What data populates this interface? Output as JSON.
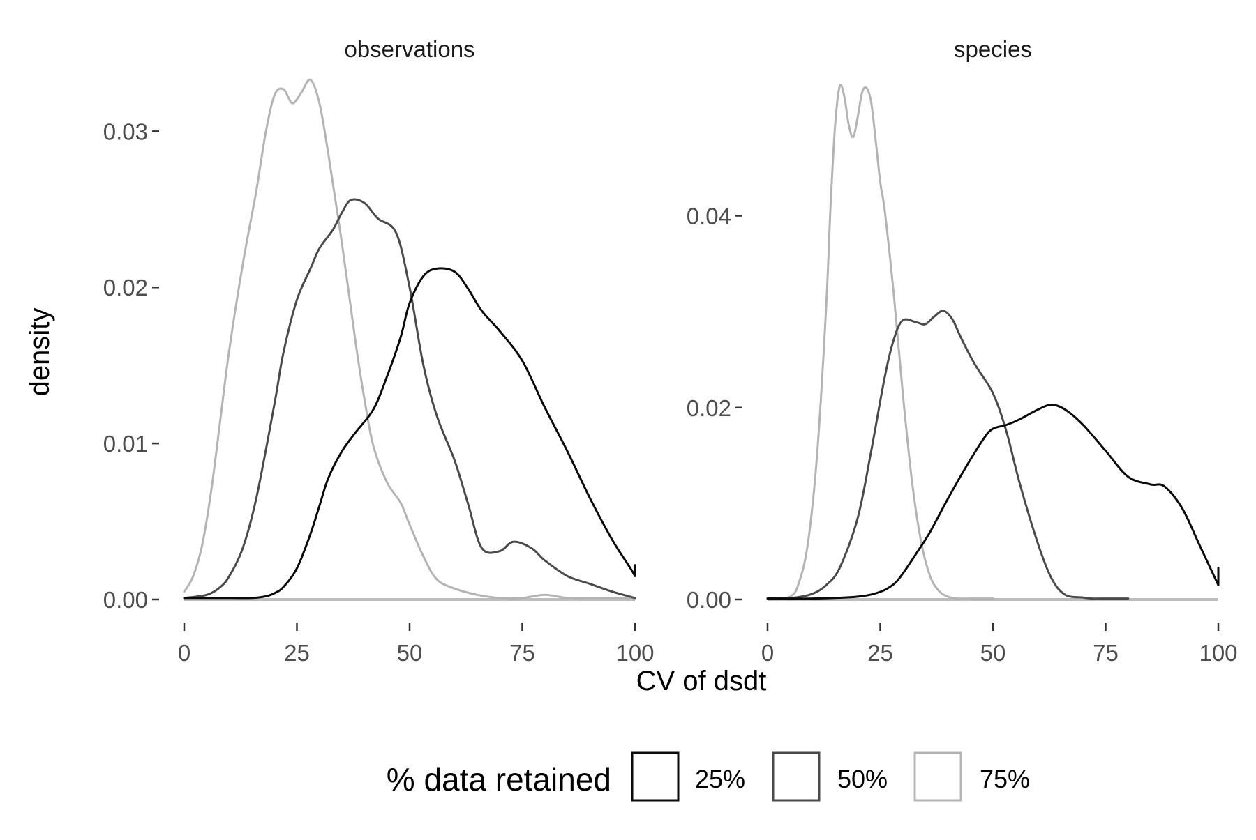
{
  "chart_data": {
    "type": "line",
    "kind": "density",
    "xlabel": "CV of dsdt",
    "ylabel": "density",
    "legend": {
      "title": "% data retained",
      "position": "bottom",
      "entries": [
        {
          "label": "25%",
          "color": "#0a0a0a"
        },
        {
          "label": "50%",
          "color": "#4a4a4a"
        },
        {
          "label": "75%",
          "color": "#b4b4b4"
        }
      ]
    },
    "panels": [
      {
        "strip": "observations",
        "xlim": [
          0,
          100
        ],
        "ylim": [
          0,
          0.0335
        ],
        "xticks": [
          0,
          25,
          50,
          75,
          100
        ],
        "xtick_labels": [
          "0",
          "25",
          "50",
          "75",
          "100"
        ],
        "yticks": [
          0,
          0.01,
          0.02,
          0.03
        ],
        "ytick_labels": [
          "0.00",
          "0.01",
          "0.02",
          "0.03"
        ],
        "series": [
          {
            "name": "25%",
            "x": [
              0,
              10,
              15,
              18,
              20,
              22,
              25,
              28,
              30,
              32,
              35,
              38,
              42,
              45,
              48,
              50,
              53,
              56,
              60,
              63,
              66,
              70,
              75,
              80,
              85,
              90,
              95,
              99,
              100,
              100
            ],
            "y": [
              0.0001,
              0.0001,
              0.0001,
              0.0002,
              0.0004,
              0.0008,
              0.002,
              0.0042,
              0.006,
              0.0078,
              0.0095,
              0.0107,
              0.0122,
              0.0143,
              0.0168,
              0.019,
              0.0207,
              0.0212,
              0.021,
              0.0199,
              0.0185,
              0.0172,
              0.0153,
              0.0123,
              0.0095,
              0.0065,
              0.0038,
              0.002,
              0.0015,
              0.0022
            ]
          },
          {
            "name": "50%",
            "x": [
              0,
              5,
              8,
              10,
              13,
              16,
              20,
              22,
              25,
              28,
              30,
              33,
              35,
              37,
              40,
              43,
              47,
              50,
              53,
              56,
              60,
              63,
              66,
              70,
              73,
              77,
              80,
              85,
              90,
              95,
              100
            ],
            "y": [
              0.0001,
              0.0003,
              0.0008,
              0.0015,
              0.0033,
              0.0065,
              0.0125,
              0.0158,
              0.0192,
              0.0212,
              0.0225,
              0.0237,
              0.0248,
              0.0256,
              0.0254,
              0.0244,
              0.0235,
              0.02,
              0.0151,
              0.0118,
              0.0089,
              0.0061,
              0.0033,
              0.0031,
              0.0037,
              0.0033,
              0.0025,
              0.0015,
              0.001,
              0.0005,
              0.0001
            ]
          },
          {
            "name": "75%",
            "x": [
              0,
              2,
              4,
              6,
              8,
              10,
              13,
              16,
              18,
              20,
              22,
              24,
              26,
              28,
              30,
              32,
              35,
              38,
              40,
              42,
              45,
              48,
              50,
              53,
              56,
              60,
              65,
              70,
              75,
              80,
              85,
              90,
              100
            ],
            "y": [
              0.0005,
              0.0015,
              0.0035,
              0.007,
              0.0115,
              0.016,
              0.0215,
              0.0262,
              0.0298,
              0.0323,
              0.0327,
              0.0318,
              0.0325,
              0.0333,
              0.0318,
              0.0285,
              0.0228,
              0.0165,
              0.0128,
              0.0098,
              0.0075,
              0.0062,
              0.0048,
              0.0028,
              0.0013,
              0.0007,
              0.0003,
              0.0001,
              0.0001,
              0.0003,
              0.0001,
              0.0001,
              0.0001
            ]
          }
        ]
      },
      {
        "strip": "species",
        "xlim": [
          0,
          100
        ],
        "ylim": [
          0,
          0.0545
        ],
        "xticks": [
          0,
          25,
          50,
          75,
          100
        ],
        "xtick_labels": [
          "0",
          "25",
          "50",
          "75",
          "100"
        ],
        "yticks": [
          0,
          0.02,
          0.04
        ],
        "ytick_labels": [
          "0.00",
          "0.02",
          "0.04"
        ],
        "series": [
          {
            "name": "25%",
            "x": [
              0,
              10,
              20,
              25,
              28,
              30,
              33,
              36,
              40,
              44,
              48,
              50,
              53,
              56,
              60,
              63,
              66,
              70,
              75,
              80,
              85,
              88,
              92,
              96,
              100,
              100
            ],
            "y": [
              0.0001,
              0.0001,
              0.0003,
              0.0008,
              0.0016,
              0.0027,
              0.0048,
              0.007,
              0.0105,
              0.0138,
              0.0168,
              0.0178,
              0.0182,
              0.0188,
              0.0198,
              0.0203,
              0.0198,
              0.0182,
              0.0155,
              0.0128,
              0.012,
              0.0118,
              0.0095,
              0.0055,
              0.0015,
              0.0033
            ]
          },
          {
            "name": "50%",
            "x": [
              0,
              6,
              10,
              13,
              16,
              20,
              23,
              26,
              28,
              30,
              33,
              35,
              37,
              39,
              41,
              43,
              46,
              50,
              53,
              56,
              60,
              63,
              66,
              70,
              72,
              75,
              80
            ],
            "y": [
              0.0001,
              0.0002,
              0.0006,
              0.0015,
              0.0033,
              0.0085,
              0.0155,
              0.0232,
              0.0271,
              0.0291,
              0.0289,
              0.0287,
              0.0295,
              0.0301,
              0.0292,
              0.0272,
              0.0245,
              0.0215,
              0.0175,
              0.012,
              0.0058,
              0.0022,
              0.0005,
              0.0002,
              0.0001,
              0.0001,
              0.0001
            ]
          },
          {
            "name": "75%",
            "x": [
              0,
              5,
              7,
              9,
              11,
              13,
              14,
              15,
              16,
              17,
              18,
              19,
              20,
              21,
              22,
              23,
              24,
              25,
              26,
              28,
              30,
              32,
              34,
              36,
              38,
              40,
              42,
              45,
              50
            ],
            "y": [
              0.0001,
              0.0003,
              0.0018,
              0.006,
              0.0152,
              0.0305,
              0.0412,
              0.0495,
              0.0535,
              0.0525,
              0.0495,
              0.0482,
              0.0503,
              0.0529,
              0.0533,
              0.0518,
              0.0478,
              0.0435,
              0.0405,
              0.0318,
              0.0215,
              0.0125,
              0.0062,
              0.0025,
              0.0009,
              0.0003,
              0.0001,
              0.0001,
              0.0001
            ]
          }
        ]
      }
    ]
  }
}
